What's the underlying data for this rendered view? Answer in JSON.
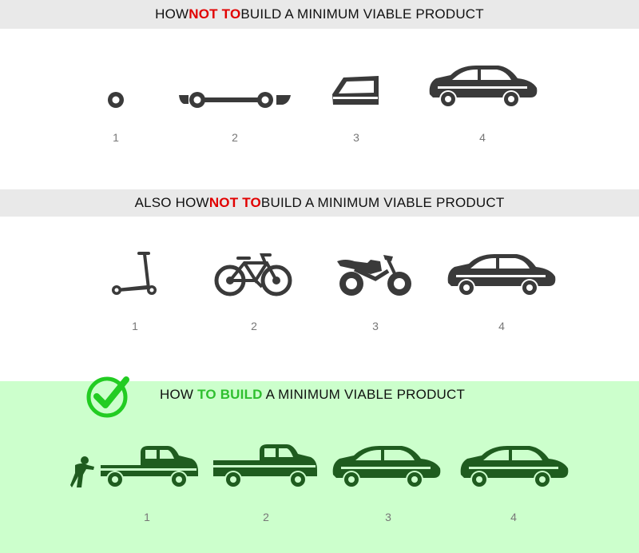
{
  "section1": {
    "title_pre": "HOW ",
    "title_highlight": "NOT TO",
    "title_post": " BUILD A MINIMUM VIABLE PRODUCT",
    "steps": [
      "1",
      "2",
      "3",
      "4"
    ],
    "icons": [
      "wheel-icon",
      "chassis-icon",
      "car-body-icon",
      "car-icon"
    ]
  },
  "section2": {
    "title_pre": "ALSO HOW ",
    "title_highlight": "NOT TO",
    "title_post": " BUILD A MINIMUM VIABLE PRODUCT",
    "steps": [
      "1",
      "2",
      "3",
      "4"
    ],
    "icons": [
      "scooter-icon",
      "bicycle-icon",
      "motorcycle-icon",
      "car-icon"
    ]
  },
  "section3": {
    "title_pre": "HOW ",
    "title_highlight": "TO BUILD",
    "title_post": " A MINIMUM VIABLE PRODUCT",
    "steps": [
      "1",
      "2",
      "3",
      "4"
    ],
    "icons": [
      "pushed-pickup-truck-icon",
      "pickup-truck-icon",
      "sedan-icon",
      "car-icon"
    ]
  },
  "colors": {
    "not_highlight": "#e10000",
    "to_highlight": "#2fbf2f",
    "grey_icon": "#3a3a3a",
    "green_icon": "#1f5c1f",
    "good_background": "#ccffcc",
    "header_background": "#e9e9e9"
  }
}
